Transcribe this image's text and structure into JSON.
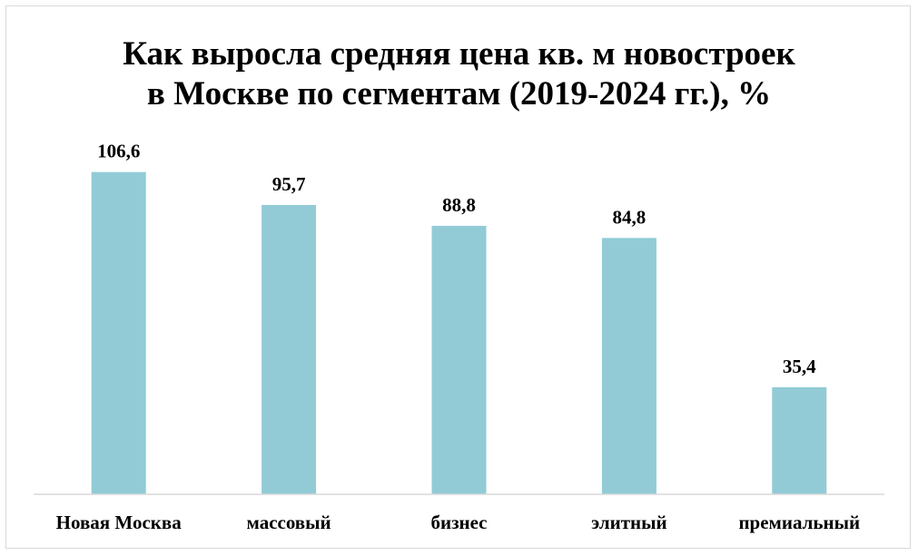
{
  "chart_data": {
    "type": "bar",
    "title_line1": "Как выросла средняя цена кв. м новостроек",
    "title_line2": "в Москве по сегментам (2019-2024 гг.), %",
    "categories": [
      "Новая Москва",
      "массовый",
      "бизнес",
      "элитный",
      "премиальный"
    ],
    "values": [
      106.6,
      95.7,
      88.8,
      84.8,
      35.4
    ],
    "value_labels": [
      "106,6",
      "95,7",
      "88,8",
      "84,8",
      "35,4"
    ],
    "bar_color": "#92cbd6",
    "axis_color": "#d9d9d9",
    "ylim": [
      0,
      120
    ],
    "grid": false,
    "legend": "none"
  }
}
